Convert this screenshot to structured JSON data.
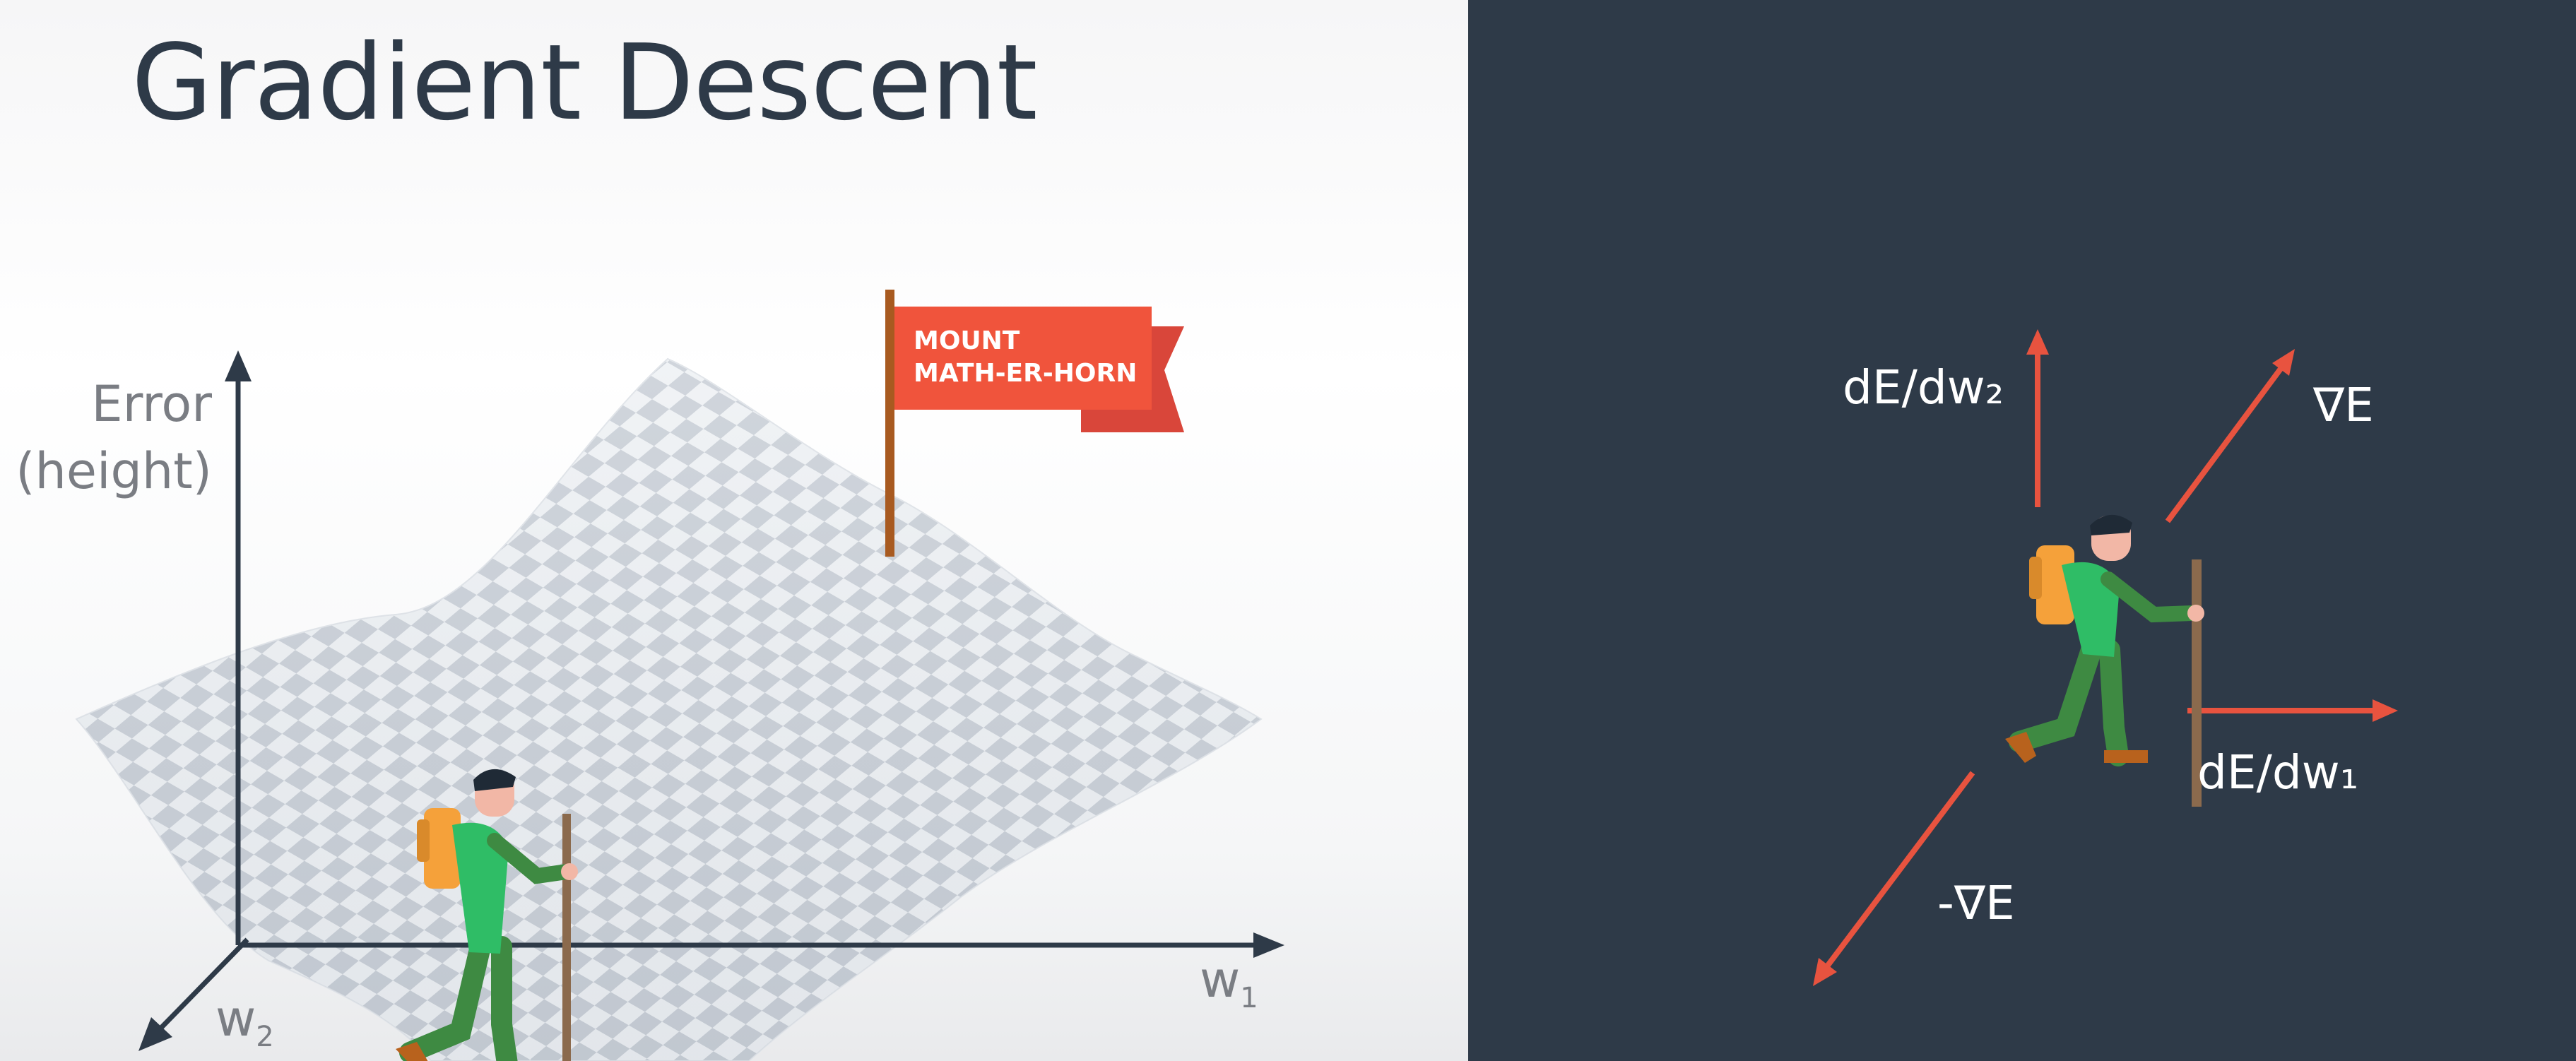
{
  "title": "Gradient Descent",
  "axes": {
    "error_label_line1": "Error",
    "error_label_line2": "(height)",
    "w1": "w",
    "w1_sub": "1",
    "w2": "w",
    "w2_sub": "2"
  },
  "flag": {
    "line1": "MOUNT",
    "line2": "MATH-ER-HORN"
  },
  "vectors": {
    "dE_dw2": "dE/dw₂",
    "grad_E": "∇E",
    "dE_dw1": "dE/dw₁",
    "neg_grad_E": "-∇E"
  },
  "colors": {
    "panel_dark": "#2e3a48",
    "arrow": "#e8533f",
    "flag": "#f0543c",
    "checker_light": "#eef1f4",
    "checker_dark": "#c8ced6",
    "hiker_shirt": "#2fbd66",
    "hiker_pants": "#3e8a42",
    "backpack": "#f5a13a",
    "stick": "#8b6a4d"
  }
}
